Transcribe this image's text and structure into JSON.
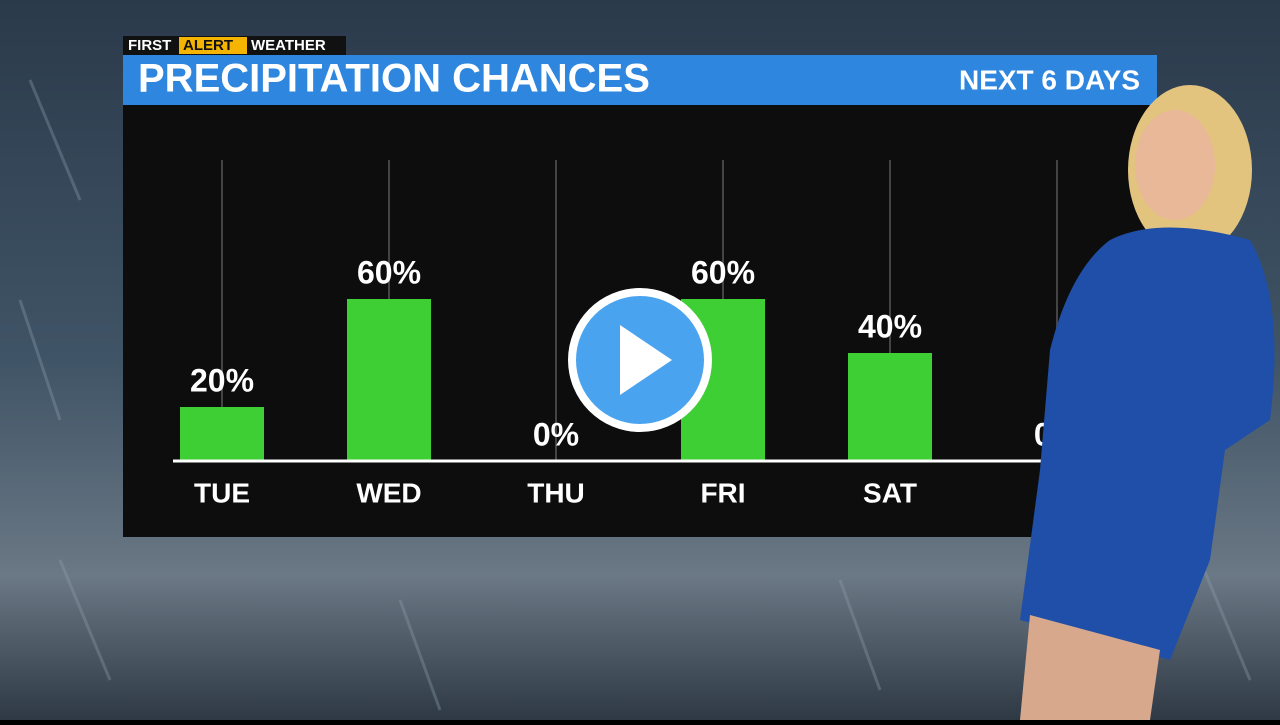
{
  "logo": {
    "first": "FIRST",
    "alert": "ALERT",
    "weather": "WEATHER"
  },
  "chart_data": {
    "type": "bar",
    "title": "PRECIPITATION CHANCES",
    "subtitle": "NEXT 6 DAYS",
    "categories": [
      "TUE",
      "WED",
      "THU",
      "FRI",
      "SAT",
      null
    ],
    "values": [
      20,
      60,
      0,
      60,
      40,
      0
    ],
    "value_labels": [
      "20%",
      "60%",
      "0%",
      "60%",
      "40%",
      "0%"
    ],
    "color": "#3ecf34",
    "ylim": [
      0,
      100
    ]
  }
}
